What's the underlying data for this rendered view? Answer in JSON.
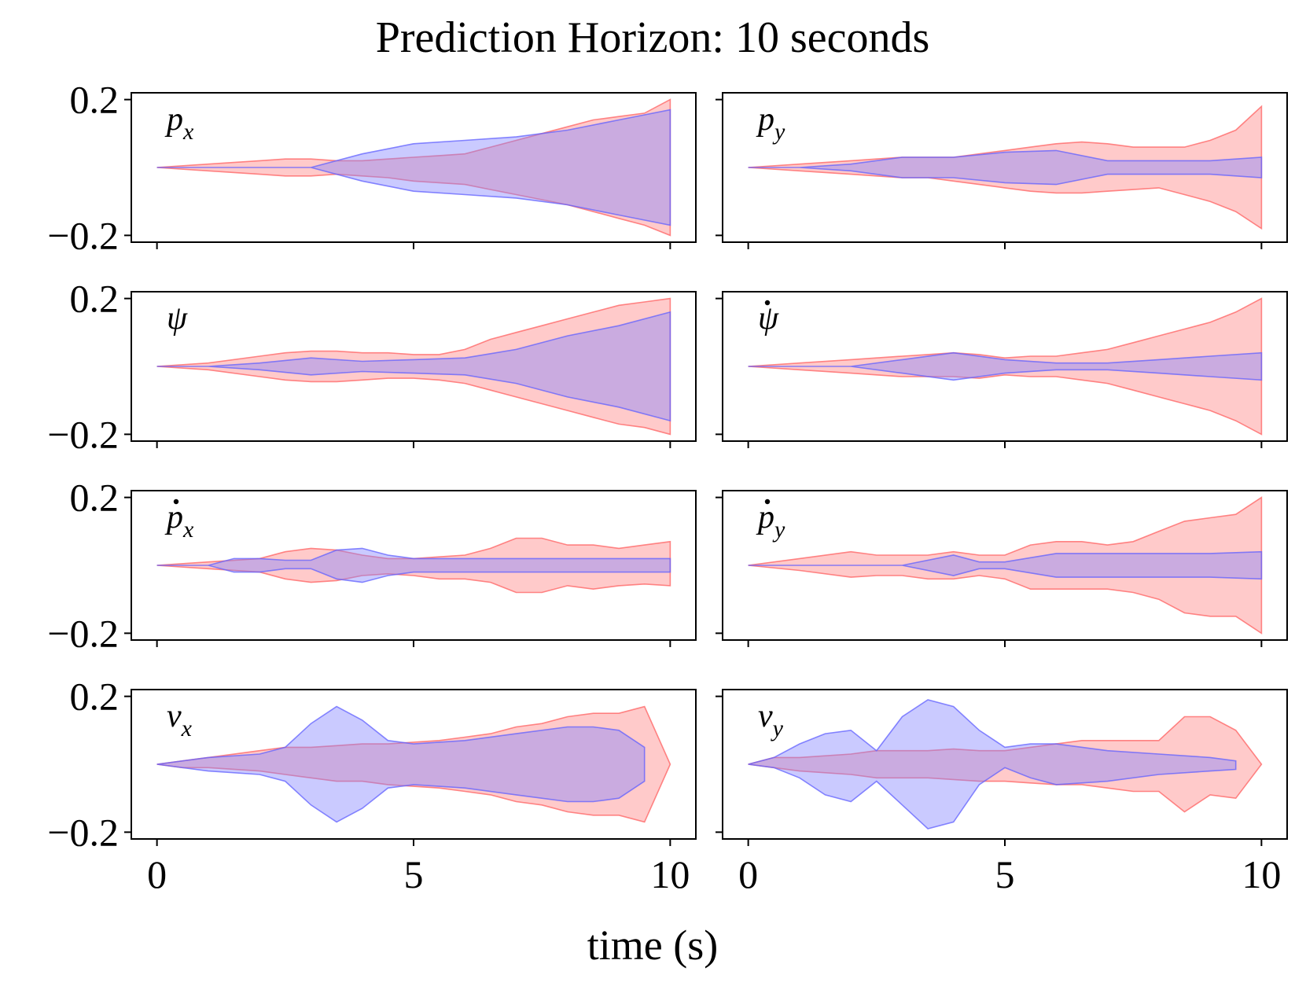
{
  "title": "Prediction Horizon: 10 seconds",
  "xlabel": "time (s)",
  "colors": {
    "red_fill": "#ff8080",
    "red_edge": "#ff6060",
    "blue_fill": "#8080ff",
    "blue_edge": "#6060ff"
  },
  "chart_data": {
    "type": "area",
    "layout": "4x2 grid, shared axes",
    "x_ticks": [
      0,
      5,
      10
    ],
    "x_tick_labels": [
      "0",
      "5",
      "10"
    ],
    "y_ticks": [
      -0.2,
      0.2
    ],
    "y_tick_labels": [
      "−0.2",
      "0.2"
    ],
    "xlim": [
      -0.5,
      10.5
    ],
    "ylim": [
      -0.22,
      0.22
    ],
    "grid": false,
    "legend": "none",
    "panels": [
      {
        "label": "p",
        "sub": "x",
        "dot": false,
        "red": {
          "x": [
            0,
            1,
            2,
            2.5,
            3,
            3.5,
            4,
            4.5,
            5,
            5.5,
            6,
            6.5,
            7,
            7.5,
            8,
            8.5,
            9,
            9.5,
            10
          ],
          "upper": [
            0,
            0.01,
            0.02,
            0.025,
            0.025,
            0.02,
            0.02,
            0.025,
            0.03,
            0.035,
            0.04,
            0.06,
            0.08,
            0.1,
            0.12,
            0.14,
            0.15,
            0.16,
            0.2
          ],
          "lower": [
            0,
            -0.01,
            -0.02,
            -0.025,
            -0.025,
            -0.02,
            -0.025,
            -0.03,
            -0.04,
            -0.045,
            -0.05,
            -0.065,
            -0.08,
            -0.095,
            -0.11,
            -0.13,
            -0.15,
            -0.17,
            -0.2
          ]
        },
        "blue": {
          "x": [
            0,
            1,
            2,
            3,
            4,
            5,
            6,
            7,
            8,
            9,
            10
          ],
          "upper": [
            0,
            0,
            0,
            0,
            0.04,
            0.07,
            0.08,
            0.09,
            0.11,
            0.14,
            0.17
          ],
          "lower": [
            0,
            0,
            0,
            0,
            -0.04,
            -0.07,
            -0.08,
            -0.09,
            -0.11,
            -0.14,
            -0.17
          ]
        }
      },
      {
        "label": "p",
        "sub": "y",
        "dot": false,
        "red": {
          "x": [
            0,
            1,
            2,
            2.5,
            3,
            3.5,
            4,
            4.5,
            5,
            5.5,
            6,
            6.5,
            7,
            7.5,
            8,
            8.5,
            9,
            9.5,
            10
          ],
          "upper": [
            0,
            0.01,
            0.02,
            0.025,
            0.03,
            0.03,
            0.03,
            0.04,
            0.05,
            0.06,
            0.07,
            0.075,
            0.07,
            0.06,
            0.06,
            0.06,
            0.08,
            0.11,
            0.18
          ],
          "lower": [
            0,
            -0.01,
            -0.02,
            -0.025,
            -0.03,
            -0.03,
            -0.04,
            -0.05,
            -0.06,
            -0.07,
            -0.075,
            -0.075,
            -0.07,
            -0.065,
            -0.06,
            -0.08,
            -0.1,
            -0.13,
            -0.18
          ]
        },
        "blue": {
          "x": [
            0,
            1,
            2,
            3,
            4,
            5,
            6,
            7,
            8,
            9,
            10
          ],
          "upper": [
            0,
            0,
            0.01,
            0.03,
            0.03,
            0.045,
            0.05,
            0.02,
            0.02,
            0.02,
            0.03
          ],
          "lower": [
            0,
            0,
            -0.01,
            -0.03,
            -0.03,
            -0.045,
            -0.05,
            -0.02,
            -0.02,
            -0.02,
            -0.03
          ]
        }
      },
      {
        "label": "ψ",
        "sub": "",
        "dot": false,
        "red": {
          "x": [
            0,
            1,
            2,
            2.5,
            3,
            3.5,
            4,
            4.5,
            5,
            5.5,
            6,
            6.5,
            7,
            7.5,
            8,
            8.5,
            9,
            9.5,
            10
          ],
          "upper": [
            0,
            0.01,
            0.03,
            0.04,
            0.045,
            0.045,
            0.04,
            0.04,
            0.035,
            0.035,
            0.05,
            0.08,
            0.1,
            0.12,
            0.14,
            0.16,
            0.18,
            0.19,
            0.2
          ],
          "lower": [
            0,
            -0.01,
            -0.03,
            -0.04,
            -0.045,
            -0.045,
            -0.04,
            -0.035,
            -0.035,
            -0.04,
            -0.05,
            -0.07,
            -0.09,
            -0.11,
            -0.13,
            -0.15,
            -0.17,
            -0.18,
            -0.2
          ]
        },
        "blue": {
          "x": [
            0,
            1,
            2,
            3,
            4,
            5,
            6,
            7,
            8,
            9,
            10
          ],
          "upper": [
            0,
            0,
            0.01,
            0.025,
            0.015,
            0.02,
            0.025,
            0.05,
            0.09,
            0.12,
            0.16
          ],
          "lower": [
            0,
            0,
            -0.01,
            -0.025,
            -0.015,
            -0.02,
            -0.025,
            -0.05,
            -0.09,
            -0.12,
            -0.16
          ]
        }
      },
      {
        "label": "ψ",
        "sub": "",
        "dot": true,
        "red": {
          "x": [
            0,
            1,
            2,
            2.5,
            3,
            3.5,
            4,
            4.5,
            5,
            5.5,
            6,
            6.5,
            7,
            7.5,
            8,
            8.5,
            9,
            9.5,
            10
          ],
          "upper": [
            0,
            0.01,
            0.02,
            0.025,
            0.03,
            0.035,
            0.04,
            0.035,
            0.025,
            0.03,
            0.03,
            0.04,
            0.05,
            0.07,
            0.09,
            0.11,
            0.13,
            0.16,
            0.2
          ],
          "lower": [
            0,
            -0.01,
            -0.02,
            -0.025,
            -0.03,
            -0.03,
            -0.03,
            -0.035,
            -0.025,
            -0.03,
            -0.03,
            -0.04,
            -0.05,
            -0.07,
            -0.09,
            -0.11,
            -0.13,
            -0.16,
            -0.2
          ]
        },
        "blue": {
          "x": [
            0,
            1,
            2,
            3,
            4,
            5,
            6,
            7,
            8,
            9,
            10
          ],
          "upper": [
            0,
            0,
            0,
            0.02,
            0.04,
            0.02,
            0.01,
            0.01,
            0.02,
            0.03,
            0.04
          ],
          "lower": [
            0,
            0,
            0,
            -0.02,
            -0.04,
            -0.02,
            -0.01,
            -0.01,
            -0.02,
            -0.03,
            -0.04
          ]
        }
      },
      {
        "label": "p",
        "sub": "x",
        "dot": true,
        "red": {
          "x": [
            0,
            1,
            2,
            2.5,
            3,
            3.5,
            4,
            4.5,
            5,
            5.5,
            6,
            6.5,
            7,
            7.5,
            8,
            8.5,
            9,
            9.5,
            10
          ],
          "upper": [
            0,
            0.01,
            0.02,
            0.04,
            0.05,
            0.045,
            0.03,
            0.02,
            0.02,
            0.025,
            0.03,
            0.05,
            0.08,
            0.08,
            0.06,
            0.06,
            0.05,
            0.06,
            0.07
          ],
          "lower": [
            0,
            -0.01,
            -0.02,
            -0.04,
            -0.05,
            -0.045,
            -0.03,
            -0.025,
            -0.03,
            -0.04,
            -0.04,
            -0.05,
            -0.08,
            -0.08,
            -0.06,
            -0.07,
            -0.06,
            -0.055,
            -0.06
          ]
        },
        "blue": {
          "x": [
            0,
            1,
            1.5,
            2,
            2.5,
            3,
            3.5,
            4,
            4.5,
            5,
            6,
            7,
            8,
            9,
            10
          ],
          "upper": [
            0,
            0,
            0.02,
            0.02,
            0.015,
            0.015,
            0.045,
            0.05,
            0.03,
            0.02,
            0.02,
            0.02,
            0.02,
            0.02,
            0.02
          ],
          "lower": [
            0,
            0,
            -0.02,
            -0.02,
            -0.01,
            -0.01,
            -0.04,
            -0.05,
            -0.03,
            -0.02,
            -0.02,
            -0.02,
            -0.02,
            -0.02,
            -0.02
          ]
        }
      },
      {
        "label": "p",
        "sub": "y",
        "dot": true,
        "red": {
          "x": [
            0,
            1,
            2,
            2.5,
            3,
            3.5,
            4,
            4.5,
            5,
            5.5,
            6,
            6.5,
            7,
            7.5,
            8,
            8.5,
            9,
            9.5,
            10
          ],
          "upper": [
            0,
            0.02,
            0.04,
            0.03,
            0.03,
            0.03,
            0.04,
            0.03,
            0.03,
            0.06,
            0.07,
            0.07,
            0.06,
            0.07,
            0.1,
            0.13,
            0.14,
            0.15,
            0.2
          ],
          "lower": [
            0,
            -0.015,
            -0.035,
            -0.03,
            -0.03,
            -0.04,
            -0.04,
            -0.03,
            -0.04,
            -0.07,
            -0.07,
            -0.07,
            -0.07,
            -0.08,
            -0.1,
            -0.14,
            -0.15,
            -0.15,
            -0.2
          ]
        },
        "blue": {
          "x": [
            0,
            1,
            2,
            3,
            4,
            4.5,
            5,
            6,
            7,
            8,
            9,
            10
          ],
          "upper": [
            0,
            0,
            0,
            0,
            0.03,
            0.01,
            0.01,
            0.035,
            0.035,
            0.035,
            0.035,
            0.04
          ],
          "lower": [
            0,
            0,
            0,
            0,
            -0.03,
            -0.01,
            -0.01,
            -0.035,
            -0.035,
            -0.035,
            -0.035,
            -0.04
          ]
        }
      },
      {
        "label": "v",
        "sub": "x",
        "dot": false,
        "red": {
          "x": [
            0,
            0.5,
            1,
            2,
            2.5,
            3,
            3.5,
            4,
            4.5,
            5,
            5.5,
            6,
            6.5,
            7,
            7.5,
            8,
            8.5,
            9,
            9.5,
            10
          ],
          "upper": [
            0,
            0.01,
            0.02,
            0.04,
            0.05,
            0.05,
            0.055,
            0.06,
            0.06,
            0.065,
            0.07,
            0.08,
            0.09,
            0.11,
            0.12,
            0.14,
            0.15,
            0.15,
            0.17,
            0.0
          ],
          "lower": [
            0,
            -0.01,
            -0.01,
            -0.02,
            -0.03,
            -0.04,
            -0.05,
            -0.05,
            -0.06,
            -0.065,
            -0.07,
            -0.08,
            -0.09,
            -0.11,
            -0.12,
            -0.14,
            -0.15,
            -0.15,
            -0.17,
            0.0
          ]
        },
        "blue": {
          "x": [
            0,
            1,
            2,
            2.5,
            3,
            3.5,
            4,
            4.5,
            5,
            6,
            7,
            8,
            8.5,
            9,
            9.5,
            9.5
          ],
          "upper": [
            0,
            0.02,
            0.03,
            0.05,
            0.12,
            0.17,
            0.13,
            0.07,
            0.06,
            0.07,
            0.09,
            0.11,
            0.11,
            0.1,
            0.05,
            0.0
          ],
          "lower": [
            0,
            -0.02,
            -0.03,
            -0.05,
            -0.12,
            -0.17,
            -0.13,
            -0.07,
            -0.06,
            -0.07,
            -0.09,
            -0.11,
            -0.11,
            -0.1,
            -0.05,
            0.0
          ]
        }
      },
      {
        "label": "v",
        "sub": "y",
        "dot": false,
        "red": {
          "x": [
            0,
            0.5,
            1,
            2,
            2.5,
            3,
            3.5,
            4,
            4.5,
            5,
            5.5,
            6,
            6.5,
            7,
            7.5,
            8,
            8.5,
            9,
            9.5,
            10
          ],
          "upper": [
            0,
            0.02,
            0.02,
            0.03,
            0.04,
            0.04,
            0.04,
            0.045,
            0.04,
            0.04,
            0.05,
            0.06,
            0.07,
            0.07,
            0.07,
            0.07,
            0.14,
            0.14,
            0.1,
            0.0
          ],
          "lower": [
            0,
            -0.01,
            -0.02,
            -0.03,
            -0.04,
            -0.04,
            -0.04,
            -0.045,
            -0.05,
            -0.05,
            -0.055,
            -0.06,
            -0.06,
            -0.07,
            -0.08,
            -0.08,
            -0.14,
            -0.09,
            -0.1,
            0.0
          ]
        },
        "blue": {
          "x": [
            0,
            0.5,
            1,
            1.5,
            2,
            2.5,
            3,
            3.5,
            4,
            4.5,
            5,
            5.5,
            6,
            7,
            8,
            9,
            9.5,
            9.5
          ],
          "upper": [
            0,
            0.02,
            0.06,
            0.09,
            0.1,
            0.04,
            0.14,
            0.19,
            0.17,
            0.1,
            0.05,
            0.06,
            0.06,
            0.04,
            0.03,
            0.02,
            0.01,
            0.0
          ],
          "lower": [
            0,
            -0.01,
            -0.04,
            -0.09,
            -0.11,
            -0.05,
            -0.12,
            -0.19,
            -0.17,
            -0.06,
            -0.01,
            -0.04,
            -0.06,
            -0.05,
            -0.03,
            -0.02,
            -0.015,
            0.0
          ]
        }
      }
    ]
  }
}
